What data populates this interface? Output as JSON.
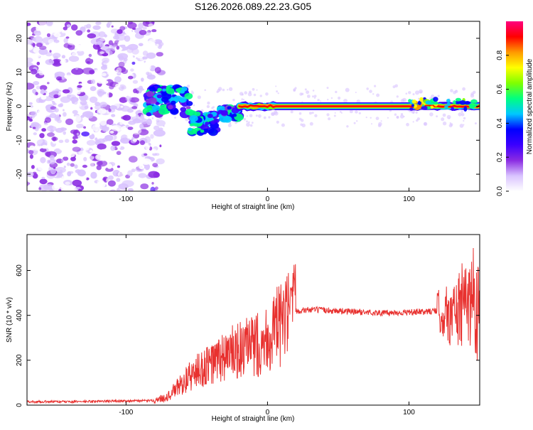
{
  "title": "S126.2026.089.22.23.G05",
  "chart_data": [
    {
      "type": "heatmap",
      "name": "spectrogram",
      "xlabel": "Height of straight line (km)",
      "ylabel": "Frequency (Hz)",
      "xlim": [
        -170,
        150
      ],
      "ylim": [
        -25,
        25
      ],
      "xticks": [
        -100,
        0,
        100
      ],
      "yticks": [
        -20,
        -10,
        0,
        10,
        20
      ],
      "colorbar": {
        "label": "Normalized spectral amplitude",
        "range": [
          0,
          1
        ],
        "ticks": [
          0.0,
          0.2,
          0.4,
          0.6,
          0.8
        ],
        "tick_labels": [
          "0.0",
          "0.2",
          "0.4",
          "0.6",
          "0.8"
        ],
        "colors": [
          "#ffffff",
          "#d9c3ff",
          "#8a2be2",
          "#3b00ff",
          "#0000ff",
          "#00c8ff",
          "#00ff80",
          "#7fff00",
          "#ffff00",
          "#ff9900",
          "#ff0000",
          "#ff007f"
        ]
      },
      "features": [
        {
          "label": "noise",
          "x_range": [
            -170,
            -85
          ],
          "freq_range": [
            -25,
            25
          ],
          "amplitude": 0.1
        },
        {
          "label": "transition",
          "x_range": [
            -85,
            -20
          ],
          "freq_center": [
            0,
            -5
          ],
          "amplitude": 0.35
        },
        {
          "label": "tone",
          "x_range": [
            -20,
            150
          ],
          "freq_center": 0,
          "amplitude": 0.9
        }
      ]
    },
    {
      "type": "line",
      "name": "snr",
      "xlabel": "Height of straight line (km)",
      "ylabel": "SNR (10 * v/v)",
      "xlim": [
        -170,
        150
      ],
      "ylim": [
        0,
        760
      ],
      "xticks": [
        -100,
        0,
        100
      ],
      "yticks": [
        0,
        200,
        400,
        600
      ],
      "color": "#e8312f",
      "series": [
        {
          "name": "SNR",
          "x": [
            -170,
            -140,
            -110,
            -80,
            -70,
            -60,
            -50,
            -40,
            -30,
            -20,
            -10,
            0,
            10,
            20,
            30,
            50,
            80,
            110,
            120,
            130,
            140,
            145,
            150
          ],
          "values": [
            15,
            15,
            18,
            20,
            40,
            100,
            150,
            180,
            220,
            240,
            260,
            300,
            360,
            420,
            425,
            420,
            410,
            415,
            420,
            400,
            450,
            500,
            420
          ]
        }
      ]
    }
  ]
}
